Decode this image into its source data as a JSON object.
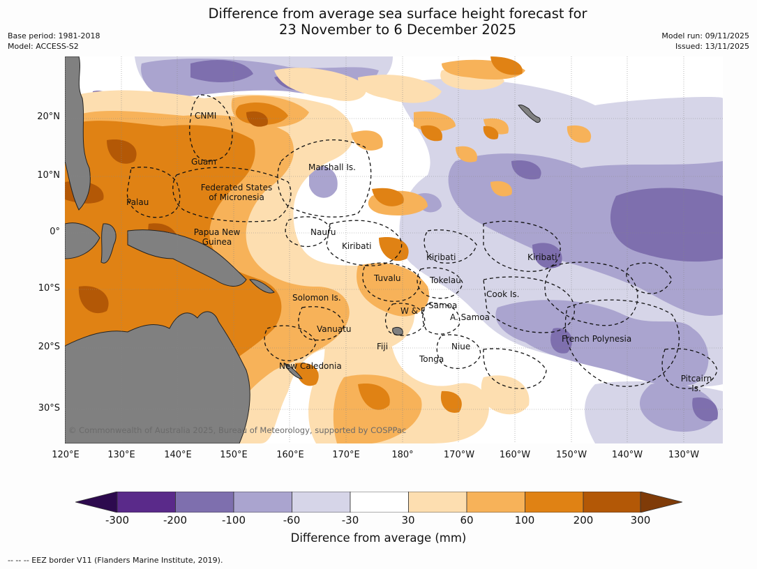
{
  "header": {
    "title_line1": "Difference from average sea surface height forecast for",
    "title_line2": "23 November to 6 December 2025",
    "base_period": "Base period: 1981-2018",
    "model": "Model: ACCESS-S2",
    "model_run": "Model run: 09/11/2025",
    "issued": "Issued: 13/11/2025"
  },
  "axes": {
    "lat_labels": [
      "20°N",
      "10°N",
      "0°",
      "10°S",
      "20°S",
      "30°S"
    ],
    "lon_labels": [
      "120°E",
      "130°E",
      "140°E",
      "150°E",
      "160°E",
      "170°E",
      "180°",
      "170°W",
      "160°W",
      "150°W",
      "140°W",
      "130°W"
    ]
  },
  "places": [
    {
      "name": "CNMI"
    },
    {
      "name": "Guam"
    },
    {
      "name": "Federated States",
      "line2": "of Micronesia"
    },
    {
      "name": "Palau"
    },
    {
      "name": "Marshall Is."
    },
    {
      "name": "Papua New",
      "line2": "Guinea"
    },
    {
      "name": "Nauru"
    },
    {
      "name": "Kiribati"
    },
    {
      "name": "Kiribati"
    },
    {
      "name": "Kiribati"
    },
    {
      "name": "Tuvalu"
    },
    {
      "name": "Tokelau"
    },
    {
      "name": "Solomon Is."
    },
    {
      "name": "Cook Is."
    },
    {
      "name": "Samoa"
    },
    {
      "name": "W & F"
    },
    {
      "name": "A. Samoa"
    },
    {
      "name": "Vanuatu"
    },
    {
      "name": "Fiji"
    },
    {
      "name": "Niue"
    },
    {
      "name": "French Polynesia"
    },
    {
      "name": "Tonga"
    },
    {
      "name": "New Caledonia"
    },
    {
      "name": "Pitcairn",
      "line2": "Is."
    }
  ],
  "copyright": "© Commonwealth of Australia 2025, Bureau of Meteorology, supported by COSPPac",
  "legend": {
    "ticks": [
      "-300",
      "-200",
      "-100",
      "-60",
      "-30",
      "30",
      "60",
      "100",
      "200",
      "300"
    ],
    "label": "Difference from average (mm)",
    "colors": [
      "#2d0a4e",
      "#5a2a8a",
      "#7e6fae",
      "#aaa4cf",
      "#d6d5e8",
      "#ffffff",
      "#fddeb0",
      "#f7b259",
      "#e08214",
      "#b35806",
      "#7f3b08"
    ]
  },
  "footnote": "-- -- -- EEZ border V11 (Flanders Marine Institute, 2019)."
}
